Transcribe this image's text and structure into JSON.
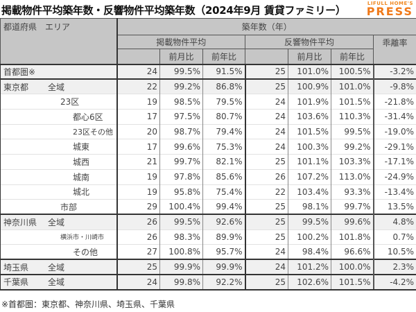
{
  "header": {
    "title": "掲載物件平均築年数・反響物件平均築年数（2024年9月 賃貸ファミリー）",
    "logo_top": "LIFULL HOME'S",
    "logo_main": "PRESS"
  },
  "table": {
    "area_header": "都道府県　エリア",
    "group_header": "築年数（年）",
    "listed_header": "掲載物件平均",
    "response_header": "反響物件平均",
    "gap_header": "乖離率",
    "mom_label": "前月比",
    "yoy_label": "前年比",
    "rows": [
      {
        "pref": "首都圏※",
        "area": "",
        "listed": "24",
        "listed_mom": "99.5%",
        "listed_yoy": "91.5%",
        "resp": "25",
        "resp_mom": "101.0%",
        "resp_yoy": "100.5%",
        "gap": "-3.2%"
      },
      {
        "pref": "東京都",
        "area": "全域",
        "listed": "22",
        "listed_mom": "99.2%",
        "listed_yoy": "86.8%",
        "resp": "25",
        "resp_mom": "100.9%",
        "resp_yoy": "101.0%",
        "gap": "-9.8%"
      },
      {
        "pref": "",
        "area": "23区",
        "listed": "19",
        "listed_mom": "98.5%",
        "listed_yoy": "79.5%",
        "resp": "24",
        "resp_mom": "101.9%",
        "resp_yoy": "101.5%",
        "gap": "-21.8%"
      },
      {
        "pref": "",
        "area": "都心6区",
        "listed": "17",
        "listed_mom": "97.5%",
        "listed_yoy": "80.7%",
        "resp": "24",
        "resp_mom": "103.6%",
        "resp_yoy": "110.3%",
        "gap": "-31.4%"
      },
      {
        "pref": "",
        "area": "23区その他",
        "listed": "20",
        "listed_mom": "98.7%",
        "listed_yoy": "79.4%",
        "resp": "24",
        "resp_mom": "101.5%",
        "resp_yoy": "99.5%",
        "gap": "-19.0%"
      },
      {
        "pref": "",
        "area": "城東",
        "listed": "17",
        "listed_mom": "99.6%",
        "listed_yoy": "75.3%",
        "resp": "24",
        "resp_mom": "100.3%",
        "resp_yoy": "99.2%",
        "gap": "-29.1%"
      },
      {
        "pref": "",
        "area": "城西",
        "listed": "21",
        "listed_mom": "99.7%",
        "listed_yoy": "82.1%",
        "resp": "25",
        "resp_mom": "101.1%",
        "resp_yoy": "103.3%",
        "gap": "-17.1%"
      },
      {
        "pref": "",
        "area": "城南",
        "listed": "19",
        "listed_mom": "97.8%",
        "listed_yoy": "85.6%",
        "resp": "26",
        "resp_mom": "107.2%",
        "resp_yoy": "113.0%",
        "gap": "-24.9%"
      },
      {
        "pref": "",
        "area": "城北",
        "listed": "19",
        "listed_mom": "95.8%",
        "listed_yoy": "75.4%",
        "resp": "22",
        "resp_mom": "103.4%",
        "resp_yoy": "93.3%",
        "gap": "-13.4%"
      },
      {
        "pref": "",
        "area": "市部",
        "listed": "29",
        "listed_mom": "100.4%",
        "listed_yoy": "99.4%",
        "resp": "25",
        "resp_mom": "98.1%",
        "resp_yoy": "99.7%",
        "gap": "13.5%"
      },
      {
        "pref": "神奈川県",
        "area": "全域",
        "listed": "26",
        "listed_mom": "99.5%",
        "listed_yoy": "92.6%",
        "resp": "25",
        "resp_mom": "99.5%",
        "resp_yoy": "99.6%",
        "gap": "4.8%"
      },
      {
        "pref": "",
        "area": "横浜市・川崎市",
        "listed": "26",
        "listed_mom": "98.3%",
        "listed_yoy": "89.9%",
        "resp": "25",
        "resp_mom": "100.2%",
        "resp_yoy": "101.8%",
        "gap": "0.7%"
      },
      {
        "pref": "",
        "area": "その他",
        "listed": "27",
        "listed_mom": "100.8%",
        "listed_yoy": "95.7%",
        "resp": "24",
        "resp_mom": "98.4%",
        "resp_yoy": "96.6%",
        "gap": "10.5%"
      },
      {
        "pref": "埼玉県",
        "area": "全域",
        "listed": "25",
        "listed_mom": "99.9%",
        "listed_yoy": "99.9%",
        "resp": "24",
        "resp_mom": "101.2%",
        "resp_yoy": "100.0%",
        "gap": "2.3%"
      },
      {
        "pref": "千葉県",
        "area": "全域",
        "listed": "24",
        "listed_mom": "99.8%",
        "listed_yoy": "92.2%",
        "resp": "25",
        "resp_mom": "102.6%",
        "resp_yoy": "101.5%",
        "gap": "-4.2%"
      }
    ]
  },
  "footnote": "※首都圏：東京都、神奈川県、埼玉県、千葉県"
}
